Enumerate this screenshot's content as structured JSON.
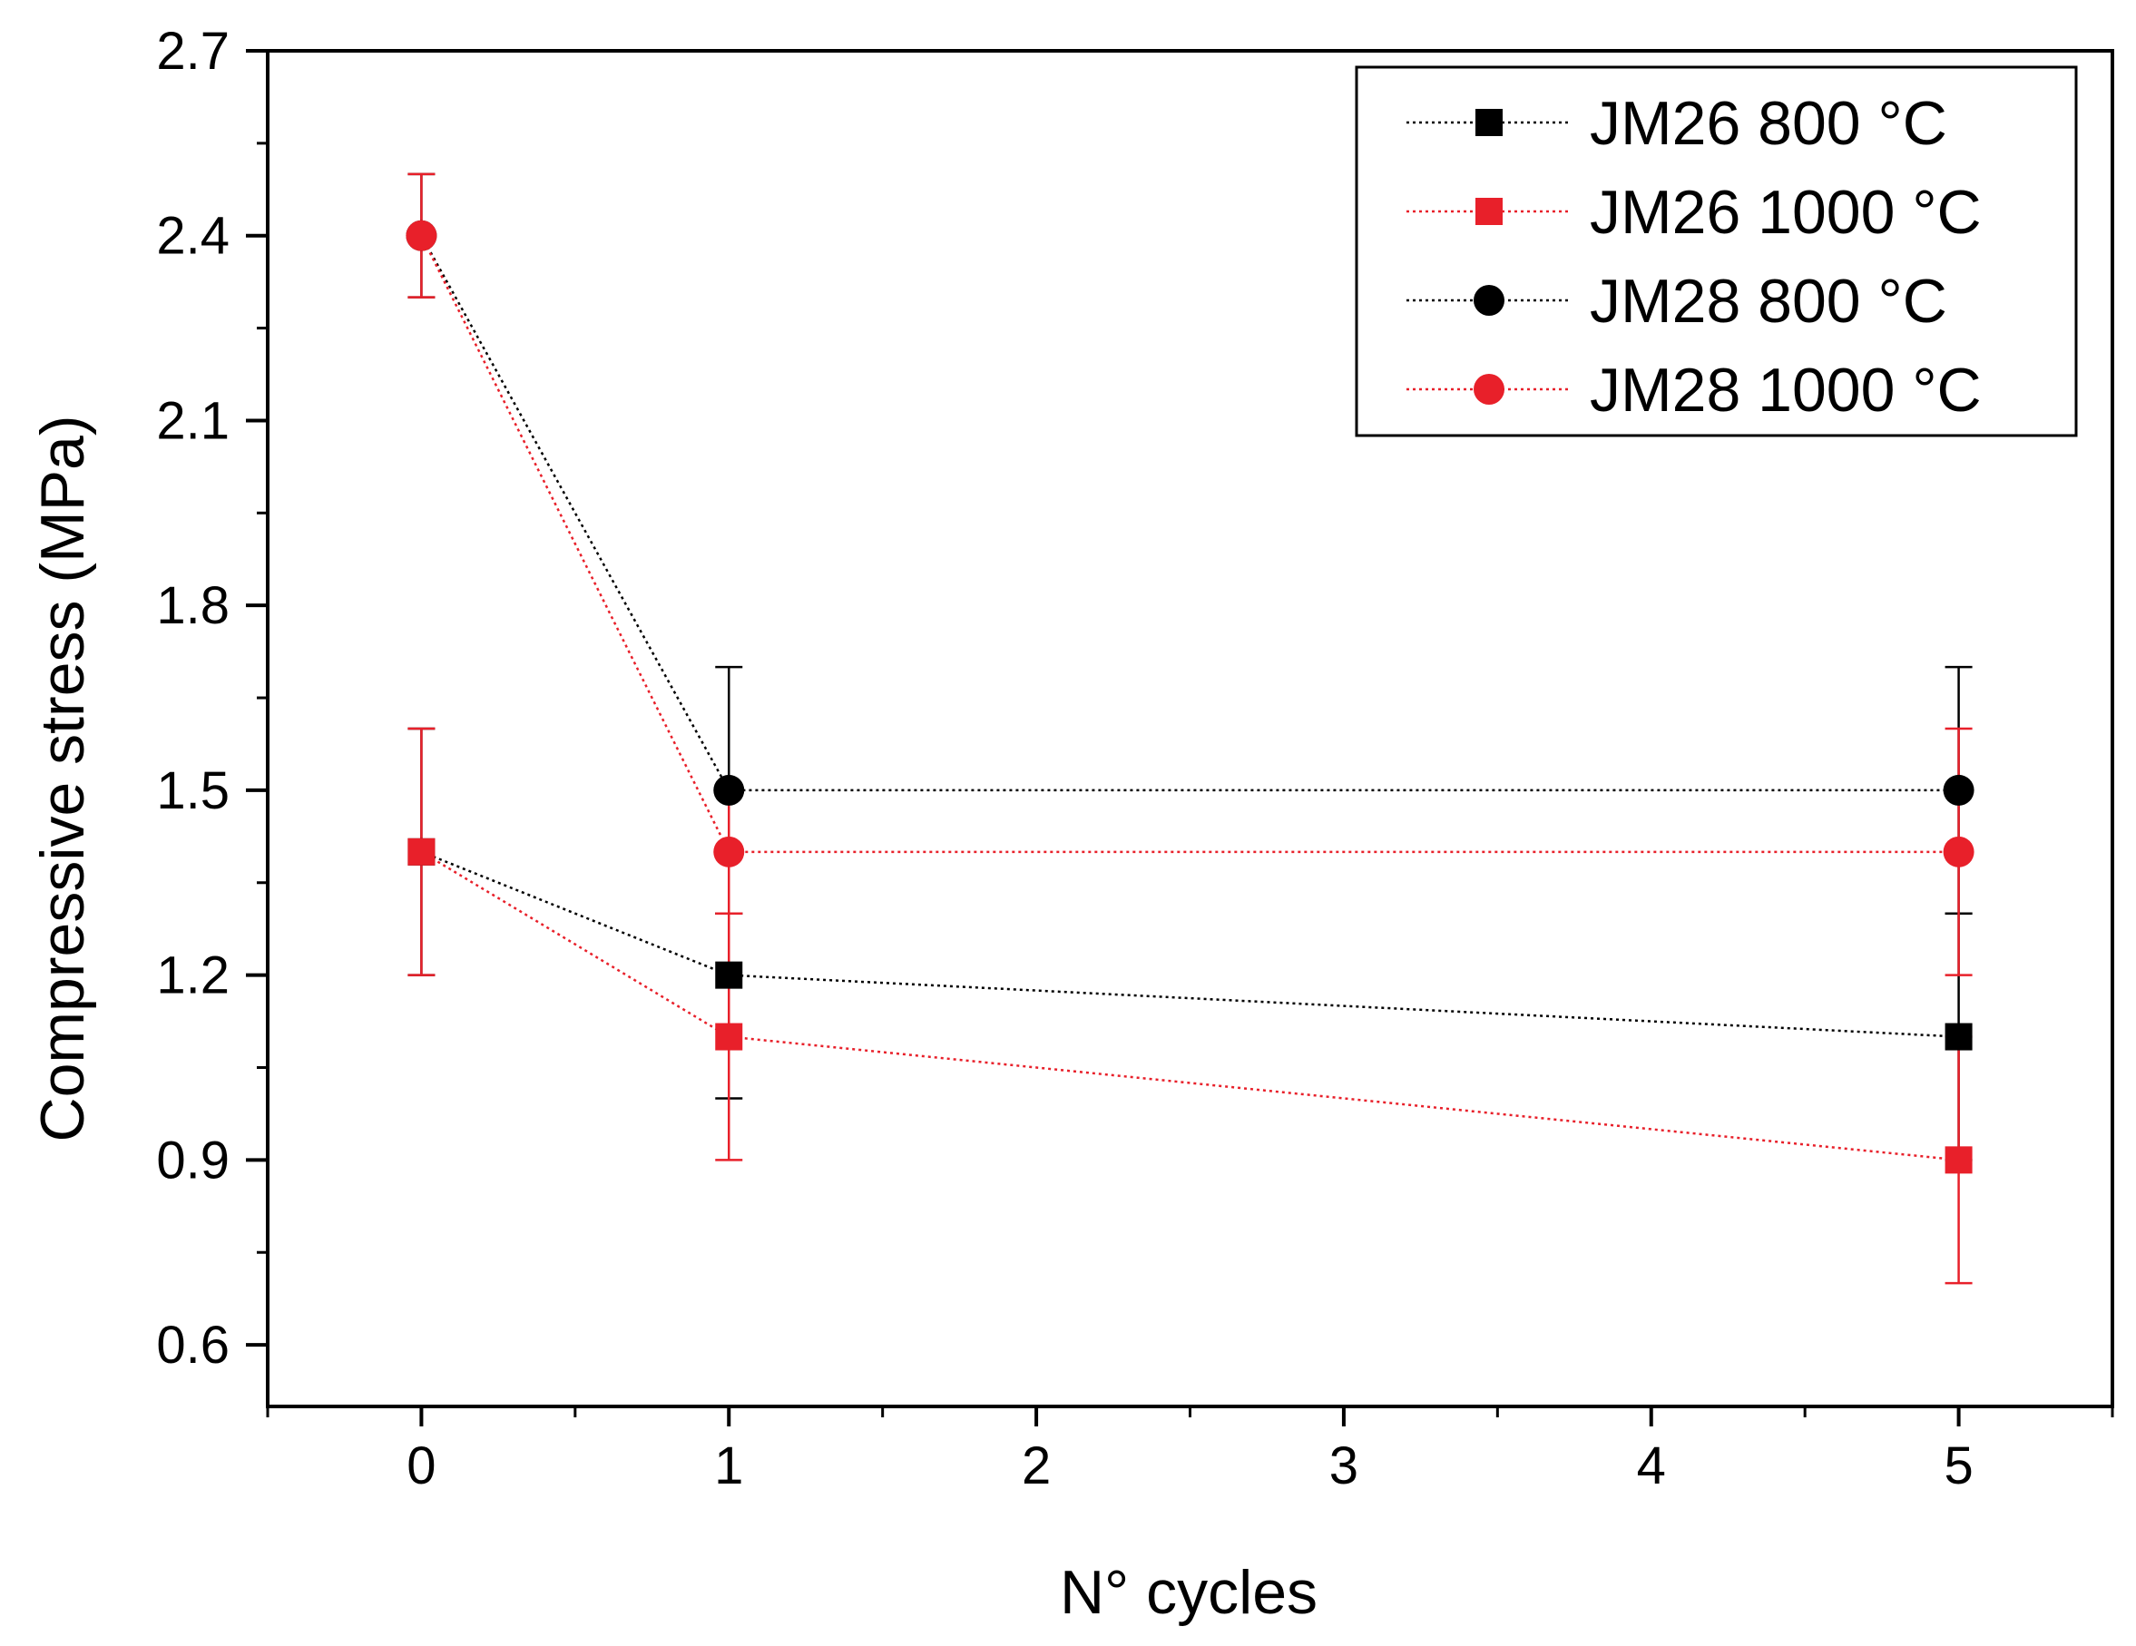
{
  "chart_data": {
    "type": "line",
    "title": "",
    "xlabel": "N° cycles",
    "ylabel": "Compressive stress (MPa)",
    "xlim": [
      -0.5,
      5.5
    ],
    "ylim": [
      0.5,
      2.7
    ],
    "xticks": [
      0,
      1,
      2,
      3,
      4,
      5
    ],
    "xtick_labels": [
      "0",
      "1",
      "2",
      "3",
      "4",
      "5"
    ],
    "yticks": [
      0.6,
      0.9,
      1.2,
      1.5,
      1.8,
      2.1,
      2.4,
      2.7
    ],
    "ytick_labels": [
      "0.6",
      "0.9",
      "1.2",
      "1.5",
      "1.8",
      "2.1",
      "2.4",
      "2.7"
    ],
    "grid": false,
    "legend_position": "top-right",
    "series": [
      {
        "name": "JM26 800 °C",
        "color": "#000000",
        "marker": "square",
        "x": [
          0,
          1,
          5
        ],
        "values": [
          1.4,
          1.2,
          1.1
        ],
        "err": [
          0.2,
          0.2,
          0.2
        ]
      },
      {
        "name": "JM26 1000 °C",
        "color": "#e8202a",
        "marker": "square",
        "x": [
          0,
          1,
          5
        ],
        "values": [
          1.4,
          1.1,
          0.9
        ],
        "err": [
          0.2,
          0.2,
          0.2
        ]
      },
      {
        "name": "JM28 800 °C",
        "color": "#000000",
        "marker": "circle",
        "x": [
          0,
          1,
          5
        ],
        "values": [
          2.4,
          1.5,
          1.5
        ],
        "err": [
          0.1,
          0.2,
          0.2
        ]
      },
      {
        "name": "JM28 1000 °C",
        "color": "#e8202a",
        "marker": "circle",
        "x": [
          0,
          1,
          5
        ],
        "values": [
          2.4,
          1.4,
          1.4
        ],
        "err": [
          0.1,
          0.1,
          0.2
        ]
      }
    ]
  }
}
